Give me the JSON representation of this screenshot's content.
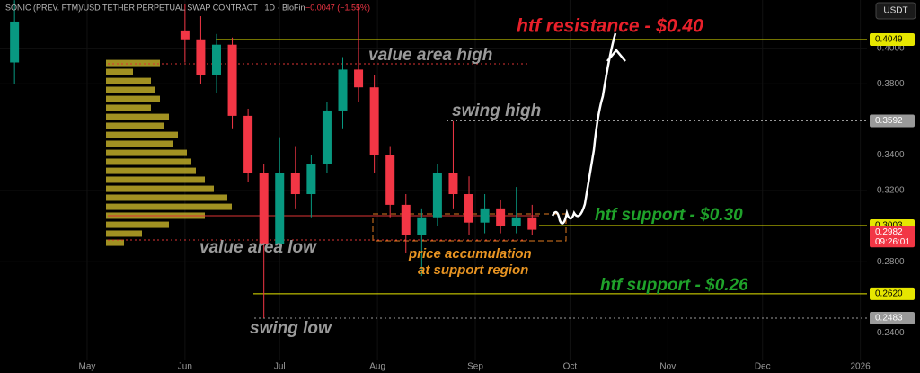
{
  "chart_data": {
    "type": "candlestick",
    "title": "SONIC (PREV. FTM)/USD TETHER PERPETUAL SWAP CONTRACT · 1D · BloFin",
    "change": "−0.0047 (−1.55%)",
    "currency": "USDT",
    "countdown": "09:26:01",
    "x": [
      -23,
      31,
      36,
      41,
      46,
      51,
      56,
      61,
      66,
      71,
      76,
      81,
      86,
      91,
      96,
      101,
      106,
      111,
      116,
      121,
      126,
      131,
      136,
      141
    ],
    "open": [
      0.392,
      0.41,
      0.405,
      0.385,
      0.402,
      0.362,
      0.33,
      0.29,
      0.33,
      0.318,
      0.335,
      0.365,
      0.388,
      0.378,
      0.34,
      0.312,
      0.295,
      0.305,
      0.33,
      0.318,
      0.302,
      0.31,
      0.3,
      0.305
    ],
    "high": [
      0.427,
      0.425,
      0.418,
      0.408,
      0.406,
      0.366,
      0.335,
      0.35,
      0.345,
      0.34,
      0.37,
      0.395,
      0.425,
      0.385,
      0.345,
      0.318,
      0.31,
      0.335,
      0.359,
      0.328,
      0.318,
      0.315,
      0.322,
      0.312
    ],
    "low": [
      0.38,
      0.392,
      0.38,
      0.375,
      0.355,
      0.325,
      0.2483,
      0.285,
      0.31,
      0.305,
      0.33,
      0.355,
      0.37,
      0.33,
      0.305,
      0.285,
      0.272,
      0.3,
      0.31,
      0.295,
      0.296,
      0.296,
      0.296,
      0.295
    ],
    "close": [
      0.415,
      0.405,
      0.385,
      0.402,
      0.362,
      0.33,
      0.29,
      0.33,
      0.318,
      0.335,
      0.365,
      0.388,
      0.378,
      0.34,
      0.312,
      0.295,
      0.305,
      0.33,
      0.318,
      0.302,
      0.31,
      0.3,
      0.305,
      0.298
    ],
    "up_color": "#089981",
    "down_color": "#f23645",
    "xlim": [
      -27.6,
      247.1
    ],
    "ylim": [
      0.2175,
      0.4271
    ],
    "xticks": [
      {
        "value": 0,
        "label": "May"
      },
      {
        "value": 31,
        "label": "Jun"
      },
      {
        "value": 61,
        "label": "Jul"
      },
      {
        "value": 92,
        "label": "Aug"
      },
      {
        "value": 123,
        "label": "Sep"
      },
      {
        "value": 153,
        "label": "Oct"
      },
      {
        "value": 184,
        "label": "Nov"
      },
      {
        "value": 214,
        "label": "Dec"
      },
      {
        "value": 245,
        "label": "2026"
      }
    ],
    "yticks": [
      {
        "value": 0.4,
        "label": "0.4000"
      },
      {
        "value": 0.38,
        "label": "0.3800"
      },
      {
        "value": 0.34,
        "label": "0.3400"
      },
      {
        "value": 0.32,
        "label": "0.3200"
      },
      {
        "value": 0.28,
        "label": "0.2800"
      },
      {
        "value": 0.24,
        "label": "0.2400"
      }
    ],
    "levels": [
      {
        "value": 0.4049,
        "label": "0.4049",
        "color": "#e6e600"
      },
      {
        "value": 0.3592,
        "label": "0.3592",
        "color": "#9a9a9a"
      },
      {
        "value": 0.3003,
        "label": "0.3003",
        "color": "#e6e600"
      },
      {
        "value": 0.2982,
        "label": "0.2982",
        "color": "#f23645"
      },
      {
        "value": 0.262,
        "label": "0.2620",
        "color": "#e6e600"
      },
      {
        "value": 0.2483,
        "label": "0.2483",
        "color": "#9a9a9a"
      }
    ],
    "volume_profile": {
      "prices": [
        0.3917,
        0.3867,
        0.3816,
        0.3766,
        0.3715,
        0.3665,
        0.3614,
        0.3564,
        0.3513,
        0.3463,
        0.3412,
        0.3362,
        0.3311,
        0.3261,
        0.321,
        0.316,
        0.3109,
        0.3059,
        0.3008,
        0.2958,
        0.2907
      ],
      "values": [
        60,
        30,
        50,
        55,
        60,
        50,
        70,
        65,
        80,
        75,
        90,
        95,
        100,
        110,
        120,
        135,
        140,
        110,
        70,
        40,
        20
      ],
      "color": "#c9b52a"
    },
    "annotations": [
      "htf resistance - $0.40",
      "value area high",
      "swing high",
      "htf support - $0.30",
      "value area low",
      "price accumulation",
      "at support region",
      "htf support - $0.26",
      "swing low"
    ]
  }
}
